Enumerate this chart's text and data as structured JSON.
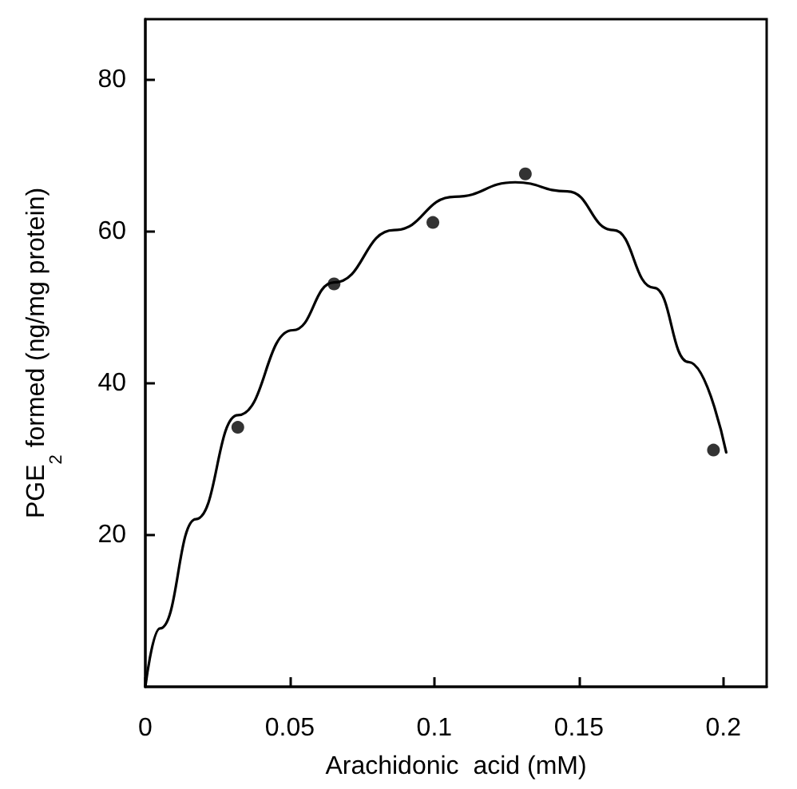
{
  "chart_data": {
    "type": "scatter",
    "xlabel": "Arachidonic  acid (mM)",
    "ylabel": "PGE$_{2}$ formed (ng/mg protein)",
    "xlim": [
      0,
      0.215
    ],
    "xticks": [
      0,
      0.05,
      0.1,
      0.15,
      0.2
    ],
    "ylim": [
      0,
      88
    ],
    "yticks": [
      20,
      40,
      60,
      80
    ],
    "grid": false,
    "marker": "circle",
    "series": [
      {
        "color": "#000000",
        "x": [
          0.032,
          0.0653,
          0.0995,
          0.1315,
          0.1966
        ],
        "values": [
          34.2,
          53.1,
          61.2,
          67.6,
          31.2
        ]
      },
      {
        "type": "line",
        "color": "#000000",
        "marker": "none",
        "line_style": "solid",
        "x": [
          0,
          0.0051,
          0.0175,
          0.032,
          0.051,
          0.0653,
          0.086,
          0.107,
          0.128,
          0.146,
          0.162,
          0.176,
          0.188,
          0.201
        ],
        "values": [
          0,
          7.7,
          22.1,
          35.8,
          47,
          53.3,
          60.2,
          64.6,
          66.5,
          65.3,
          60.2,
          52.6,
          42.8,
          30.9
        ]
      }
    ]
  }
}
